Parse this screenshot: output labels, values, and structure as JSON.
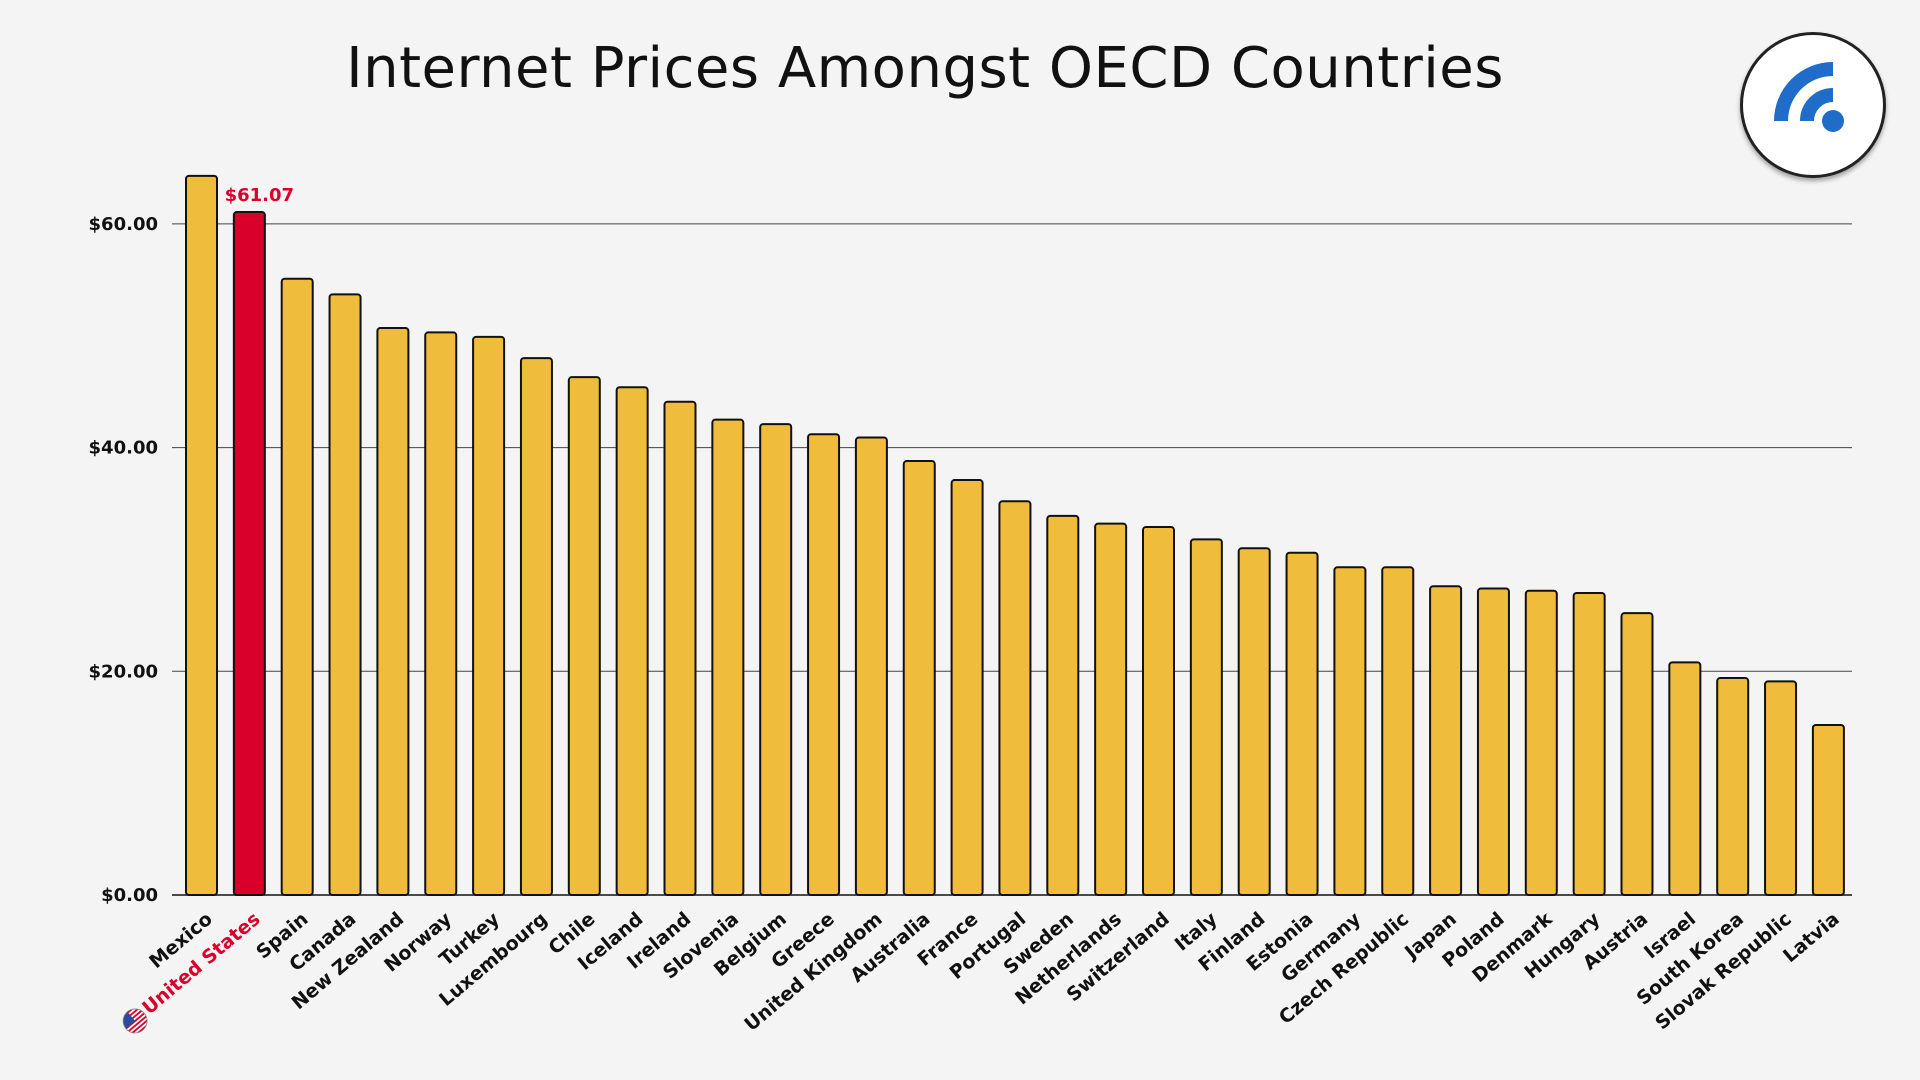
{
  "chart_data": {
    "type": "bar",
    "title": "Internet Prices Amongst OECD Countries",
    "xlabel": "",
    "ylabel": "",
    "ylim": [
      0,
      65
    ],
    "yticks": [
      0,
      20,
      40,
      60
    ],
    "ytick_labels": [
      "$0.00",
      "$20.00",
      "$40.00",
      "$60.00"
    ],
    "grid": true,
    "categories": [
      "Mexico",
      "United States",
      "Spain",
      "Canada",
      "New Zealand",
      "Norway",
      "Turkey",
      "Luxembourg",
      "Chile",
      "Iceland",
      "Ireland",
      "Slovenia",
      "Belgium",
      "Greece",
      "United Kingdom",
      "Australia",
      "France",
      "Portugal",
      "Sweden",
      "Netherlands",
      "Switzerland",
      "Italy",
      "Finland",
      "Estonia",
      "Germany",
      "Czech Republic",
      "Japan",
      "Poland",
      "Denmark",
      "Hungary",
      "Austria",
      "Israel",
      "South Korea",
      "Slovak Republic",
      "Latvia"
    ],
    "values": [
      64.3,
      61.07,
      55.1,
      53.7,
      50.7,
      50.3,
      49.9,
      48.0,
      46.3,
      45.4,
      44.1,
      42.5,
      42.1,
      41.2,
      40.9,
      38.8,
      37.1,
      35.2,
      33.9,
      33.2,
      32.9,
      31.8,
      31.0,
      30.6,
      29.3,
      29.3,
      27.6,
      27.4,
      27.2,
      27.0,
      25.2,
      20.8,
      19.4,
      19.1,
      15.2
    ],
    "highlight_category": "United States",
    "annotations": [
      {
        "category": "United States",
        "text": "$61.07"
      }
    ],
    "colors": {
      "bar": "#f0bc3b",
      "highlight": "#d9002b",
      "bar_outline": "#111111",
      "grid": "#444444",
      "highlight_text": "#d9002b"
    }
  },
  "logo": {
    "icon": "wifi-signal-icon",
    "color": "#1f6dc8"
  },
  "highlight_flag_icon": "us-flag-icon"
}
